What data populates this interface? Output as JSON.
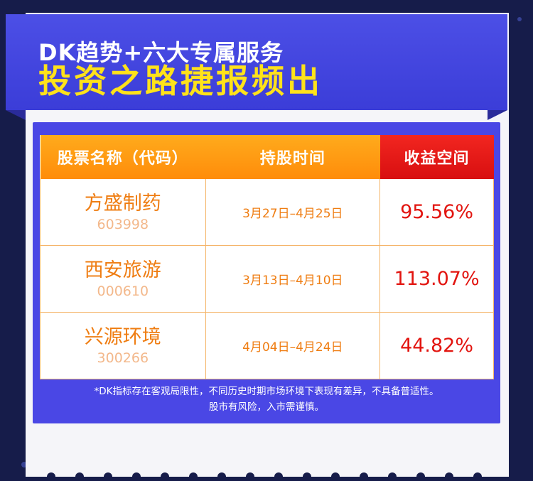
{
  "banner": {
    "subtitle": "DK趋势+六大专属服务",
    "headline": "投资之路捷报频出"
  },
  "table": {
    "headers": [
      "股票名称（代码）",
      "持股时间",
      "收益空间"
    ],
    "rows": [
      {
        "name": "方盛制药",
        "code": "603998",
        "period": "3月27日–4月25日",
        "profit": "95.56%"
      },
      {
        "name": "西安旅游",
        "code": "000610",
        "period": "3月13日–4月10日",
        "profit": "113.07%"
      },
      {
        "name": "兴源环境",
        "code": "300266",
        "period": "4月04日–4月24日",
        "profit": "44.82%"
      }
    ]
  },
  "disclaimer": {
    "line1": "*DK指标存在客观局限性，不同历史时期市场环境下表现有差异，不具备普适性。",
    "line2": "股市有风险，入市需谨慎。"
  },
  "colors": {
    "background": "#161c4a",
    "banner": "#4c4fe6",
    "headline": "#ffe21a",
    "header_orange": "#ff9a12",
    "header_red": "#e51a16",
    "stock_text": "#ef7d12",
    "profit_text": "#e2140f"
  }
}
